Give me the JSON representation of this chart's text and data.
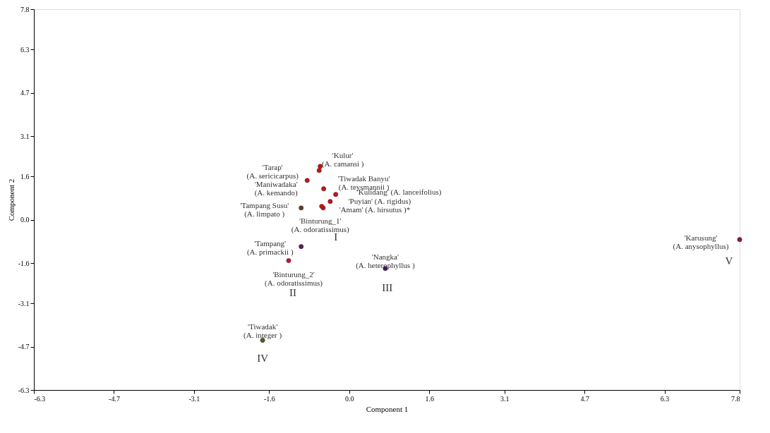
{
  "chart_data": {
    "type": "scatter",
    "xlabel": "Component 1",
    "ylabel": "Component 2",
    "xlim": [
      -6.3,
      7.8
    ],
    "ylim": [
      -6.3,
      7.8
    ],
    "xticks": [
      -6.3,
      -4.7,
      -3.1,
      -1.6,
      {
        "value": 0,
        "label": "0.0"
      },
      1.6,
      3.1,
      4.7,
      6.3,
      7.8
    ],
    "yticks": [
      -6.3,
      -4.7,
      -3.1,
      -1.6,
      {
        "value": 0,
        "label": "0.0"
      },
      1.6,
      3.1,
      4.7,
      6.3,
      7.8
    ],
    "x": [
      -0.58,
      -0.6,
      -0.84,
      -0.51,
      -0.27,
      -0.38,
      -0.52,
      -0.55,
      -0.96,
      -0.96,
      -1.21,
      0.72,
      -1.73,
      7.8
    ],
    "values": [
      1.98,
      1.83,
      1.46,
      1.15,
      0.94,
      0.68,
      0.44,
      0.5,
      0.44,
      -0.99,
      -1.51,
      -1.8,
      -4.46,
      -0.73
    ],
    "colors": [
      "#cc1111",
      "#cc1111",
      "#cc1111",
      "#cc1111",
      "#cc1111",
      "#cc1111",
      "#cc1111",
      "#cc1111",
      "#6b3a1f",
      "#5a1a5a",
      "#cc1133",
      "#3a1a5a",
      "#5a5a1a",
      "#8a1a2a"
    ],
    "marker": "circle",
    "grid": false,
    "annotations": [
      {
        "text": "'Kulur'\n(A. camansi )",
        "x": -0.58,
        "y": 1.98
      },
      {
        "text": "'Tarap'\n(A. sericicarpus)",
        "x": -0.6,
        "y": 1.83
      },
      {
        "text": "'Maniwadaka'\n(A. kemando)",
        "x": -0.84,
        "y": 1.46
      },
      {
        "text": "'Tiwadak Banyu'\n(A. teysmannii )",
        "x": -0.51,
        "y": 1.15
      },
      {
        "text": "'Kulidang' (A. lanceifolius)",
        "x": -0.27,
        "y": 0.94
      },
      {
        "text": "'Puyian' (A. rigidus)",
        "x": -0.38,
        "y": 0.68
      },
      {
        "text": "'Amam' (A. hirsutus )*",
        "x": -0.52,
        "y": 0.44
      },
      {
        "text": "'Binturung_1'\n(A. odoratissimus)",
        "x": -0.55,
        "y": 0.5
      },
      {
        "text": "'Tampang Susu'\n(A. limpato )",
        "x": -0.96,
        "y": 0.44
      },
      {
        "text": "'Tampang'\n(A. primackii )",
        "x": -0.96,
        "y": -0.99
      },
      {
        "text": "'Binturung_2'\n(A. odoratissimus)",
        "x": -1.21,
        "y": -1.51
      },
      {
        "text": "'Nangka'\n(A. heterophyllus )",
        "x": 0.72,
        "y": -1.8
      },
      {
        "text": "'Tiwadak'\n(A. integer )",
        "x": -1.73,
        "y": -4.46
      },
      {
        "text": "'Karusung'\n(A. anysophyllus)",
        "x": 7.8,
        "y": -0.73
      },
      {
        "text": "I",
        "x": -0.38,
        "y": 0.68
      },
      {
        "text": "II",
        "x": -1.21,
        "y": -1.51
      },
      {
        "text": "III",
        "x": 0.72,
        "y": -1.8
      },
      {
        "text": "IV",
        "x": -1.73,
        "y": -4.46
      },
      {
        "text": "V",
        "x": 7.8,
        "y": -0.73
      }
    ]
  }
}
